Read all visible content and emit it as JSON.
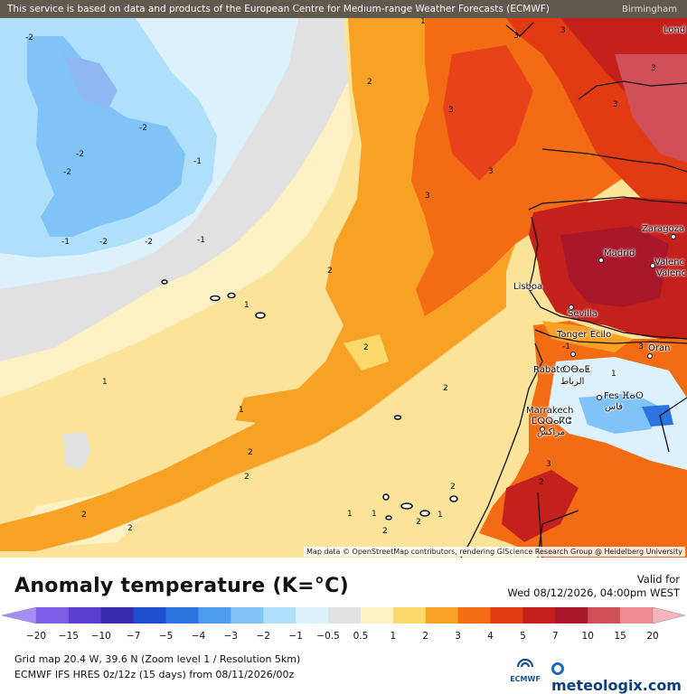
{
  "notice": "This service is based on data and products of the European Centre for Medium-range Weather Forecasts (ECMWF)",
  "attribution": "Map data © OpenStreetMap contributors, rendering GIScience Research Group @ Heidelberg University",
  "cities": [
    {
      "id": "birmingham",
      "label": "Birmingham"
    },
    {
      "id": "london",
      "label": "Lond"
    },
    {
      "id": "zaragoza",
      "label": "Zaragoza"
    },
    {
      "id": "madrid",
      "label": "Madrid"
    },
    {
      "id": "valencia1",
      "label": "Valenc"
    },
    {
      "id": "valencia2",
      "label": "Valenc"
    },
    {
      "id": "lisboa",
      "label": "Lisboa"
    },
    {
      "id": "sevilla",
      "label": "Sevilla"
    },
    {
      "id": "tanger",
      "label": "Tanger Ecilo"
    },
    {
      "id": "oran",
      "label": "Oran"
    },
    {
      "id": "rabat",
      "label": "Rabat ⵔⴱⴰⵟ"
    },
    {
      "id": "rabat_ar",
      "label": "الرباط"
    },
    {
      "id": "fes",
      "label": "Fes ⴼⴰⵙ"
    },
    {
      "id": "fes_ar",
      "label": "فاس"
    },
    {
      "id": "marrakech",
      "label": "Marrakech"
    },
    {
      "id": "marrakech_tz",
      "label": "ⵎⵕⵕⴰⴽⵛ"
    },
    {
      "id": "marrakech_ar",
      "label": "مراكش"
    }
  ],
  "contour_labels": [
    "-2",
    "-2",
    "-2",
    "-2",
    "-1",
    "-2",
    "-1",
    "-2",
    "-1",
    "1",
    "1",
    "1",
    "1",
    "1",
    "1",
    "1",
    "2",
    "2",
    "2",
    "2",
    "2",
    "2",
    "2",
    "2",
    "2",
    "2",
    "2",
    "3",
    "3",
    "3",
    "3",
    "3",
    "3",
    "3",
    "3",
    "-1",
    "1",
    "2",
    "3"
  ],
  "title": "Anomaly temperature (K=°C)",
  "valid": {
    "label": "Valid for",
    "datetime": "Wed 08/12/2026, 04:00pm WEST"
  },
  "legend": {
    "labels": [
      "−20",
      "−15",
      "−10",
      "−7",
      "−5",
      "−4",
      "−3",
      "−2",
      "−1",
      "−0.5",
      "0.5",
      "1",
      "2",
      "3",
      "4",
      "5",
      "7",
      "10",
      "15",
      "20"
    ],
    "colors": [
      "#a48ef5",
      "#7b5fe6",
      "#5a3fce",
      "#3a2bab",
      "#1f4fcc",
      "#2c74e0",
      "#4d9cf0",
      "#7fc3f7",
      "#aee0fb",
      "#dcf1fb",
      "#e1e1e1",
      "#fdf1c4",
      "#fbd96c",
      "#f7a224",
      "#f36c14",
      "#e23a12",
      "#c4211c",
      "#a8172a",
      "#d0505a",
      "#ee8c92",
      "#f5b5bd"
    ]
  },
  "footer": {
    "grid": "Grid map 20.4 W, 39.6 N (Zoom level 1 / Resolution 5km)",
    "model": "ECMWF IFS HRES 0z/12z (15 days)  from  08/11/2026/00z"
  },
  "logos": {
    "ecmwf": "ECMWF",
    "meteologix": "meteologix.com"
  }
}
